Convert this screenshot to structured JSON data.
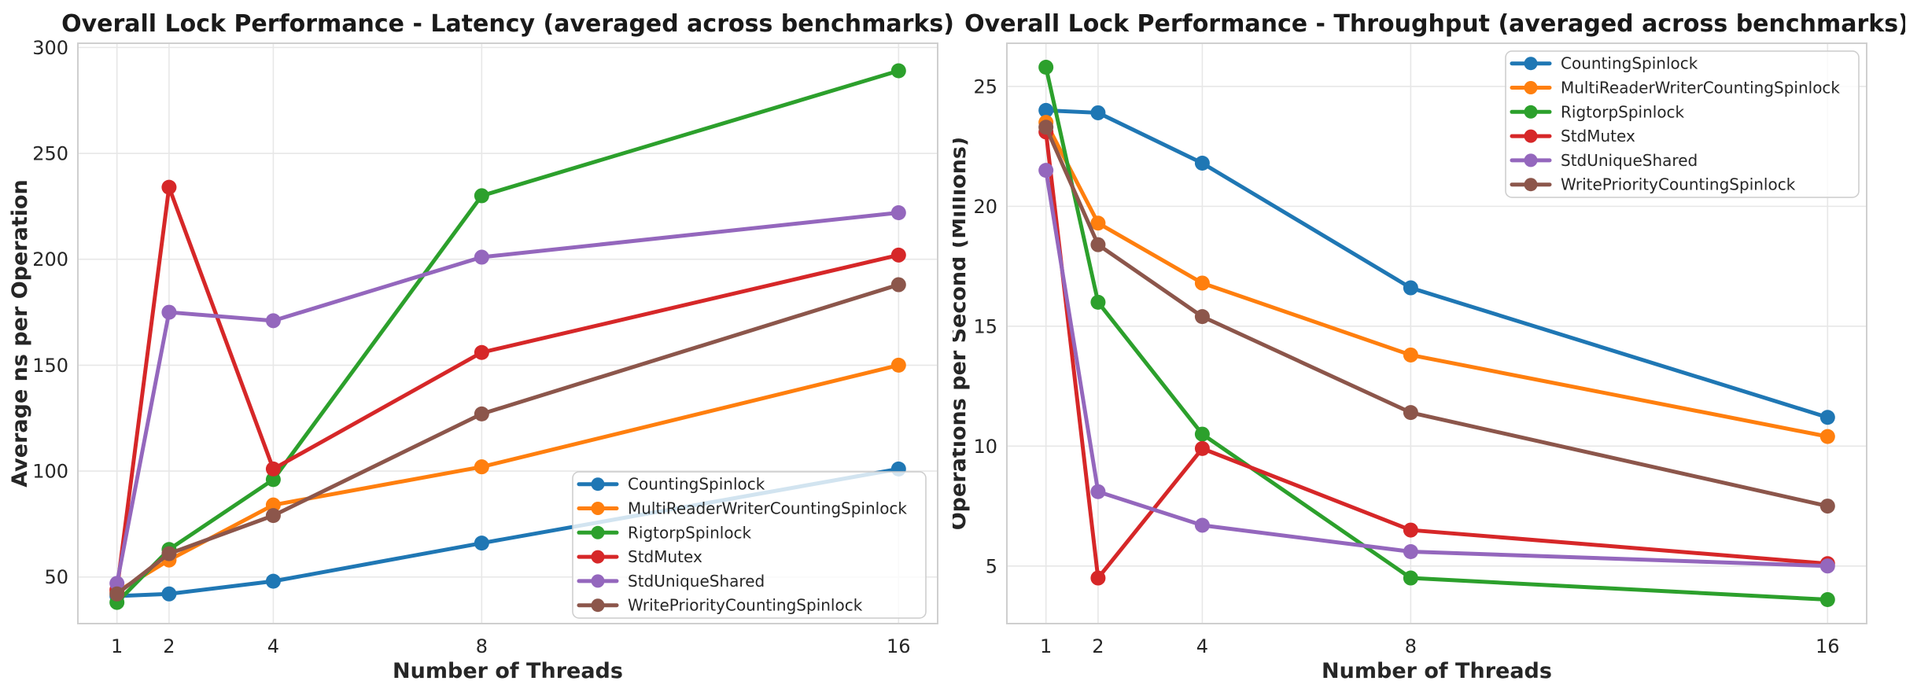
{
  "style": {
    "background": "#ffffff",
    "grid_color": "#e7e7e7",
    "spine_color": "#cfcfcf",
    "title_color": "#1a1a1a",
    "text_color": "#262626",
    "legend_bg_alpha": "rgba(255,255,255,0.8)",
    "legend_border": "#cccccc"
  },
  "chart_data": [
    {
      "type": "line",
      "title": "Overall Lock Performance - Latency (averaged across benchmarks)",
      "xlabel": "Number of Threads",
      "ylabel": "Average ns per Operation",
      "x": [
        1,
        2,
        4,
        8,
        16
      ],
      "x_tick_labels": [
        "1",
        "2",
        "4",
        "8",
        "16"
      ],
      "y_ticks": [
        50,
        100,
        150,
        200,
        250,
        300
      ],
      "xlim": [
        0.25,
        16.75
      ],
      "ylim": [
        28,
        302
      ],
      "grid": true,
      "legend_position": "lower right",
      "series": [
        {
          "name": "CountingSpinlock",
          "color": "#1f77b4",
          "values": [
            41,
            42,
            48,
            66,
            101
          ]
        },
        {
          "name": "MultiReaderWriterCountingSpinlock",
          "color": "#ff7f0e",
          "values": [
            43,
            58,
            84,
            102,
            150
          ]
        },
        {
          "name": "RigtorpSpinlock",
          "color": "#2ca02c",
          "values": [
            38,
            63,
            96,
            230,
            289
          ]
        },
        {
          "name": "StdMutex",
          "color": "#d62728",
          "values": [
            44,
            234,
            101,
            156,
            202
          ]
        },
        {
          "name": "StdUniqueShared",
          "color": "#9467bd",
          "values": [
            47,
            175,
            171,
            201,
            222
          ]
        },
        {
          "name": "WritePriorityCountingSpinlock",
          "color": "#8c564b",
          "values": [
            42,
            61,
            79,
            127,
            188
          ]
        }
      ]
    },
    {
      "type": "line",
      "title": "Overall Lock Performance - Throughput (averaged across benchmarks)",
      "xlabel": "Number of Threads",
      "ylabel": "Operations per Second (Millions)",
      "x": [
        1,
        2,
        4,
        8,
        16
      ],
      "x_tick_labels": [
        "1",
        "2",
        "4",
        "8",
        "16"
      ],
      "y_ticks": [
        5,
        10,
        15,
        20,
        25
      ],
      "xlim": [
        0.25,
        16.75
      ],
      "ylim": [
        2.6,
        26.8
      ],
      "grid": true,
      "legend_position": "upper right",
      "series": [
        {
          "name": "CountingSpinlock",
          "color": "#1f77b4",
          "values": [
            24.0,
            23.9,
            21.8,
            16.6,
            11.2
          ]
        },
        {
          "name": "MultiReaderWriterCountingSpinlock",
          "color": "#ff7f0e",
          "values": [
            23.5,
            19.3,
            16.8,
            13.8,
            10.4
          ]
        },
        {
          "name": "RigtorpSpinlock",
          "color": "#2ca02c",
          "values": [
            25.8,
            16.0,
            10.5,
            4.5,
            3.6
          ]
        },
        {
          "name": "StdMutex",
          "color": "#d62728",
          "values": [
            23.1,
            4.5,
            9.9,
            6.5,
            5.1
          ]
        },
        {
          "name": "StdUniqueShared",
          "color": "#9467bd",
          "values": [
            21.5,
            8.1,
            6.7,
            5.6,
            5.0
          ]
        },
        {
          "name": "WritePriorityCountingSpinlock",
          "color": "#8c564b",
          "values": [
            23.3,
            18.4,
            15.4,
            11.4,
            7.5
          ]
        }
      ]
    }
  ]
}
